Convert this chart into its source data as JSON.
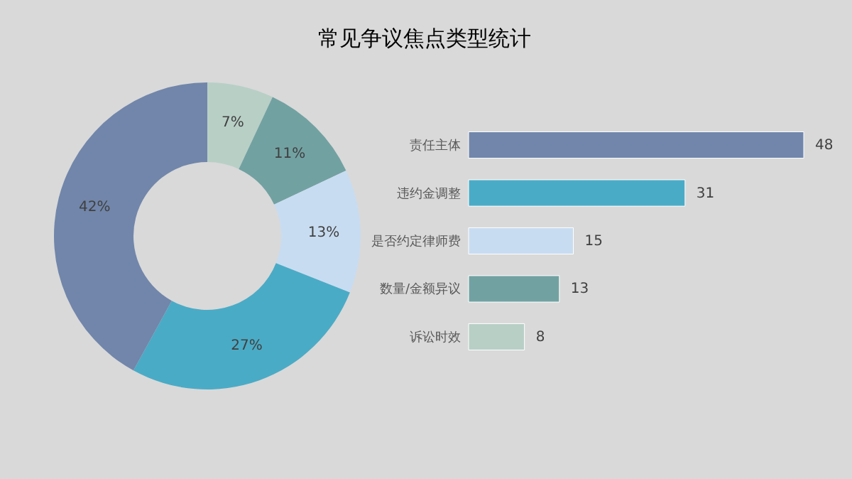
{
  "chart_data": [
    {
      "type": "donut",
      "title": "常见争议焦点类型统计",
      "categories": [
        null,
        null,
        null,
        null,
        null
      ],
      "values": [
        7,
        11,
        13,
        27,
        42
      ],
      "value_labels": [
        "7%",
        "11%",
        "13%",
        "27%",
        "42%"
      ],
      "colors": [
        "#b8cfc6",
        "#72a1a2",
        "#c8dcf1",
        "#4aabc6",
        "#7186aa"
      ],
      "legend": false
    },
    {
      "type": "bar",
      "orientation": "horizontal",
      "categories": [
        "责任主体",
        "违约金调整",
        "是否约定律师费",
        "数量/金额异议",
        "诉讼时效"
      ],
      "values": [
        48,
        31,
        15,
        13,
        8
      ],
      "colors": [
        "#7186aa",
        "#4aabc6",
        "#c8dcf1",
        "#72a1a2",
        "#b8cfc6"
      ],
      "data_labels": true,
      "legend": false
    }
  ]
}
